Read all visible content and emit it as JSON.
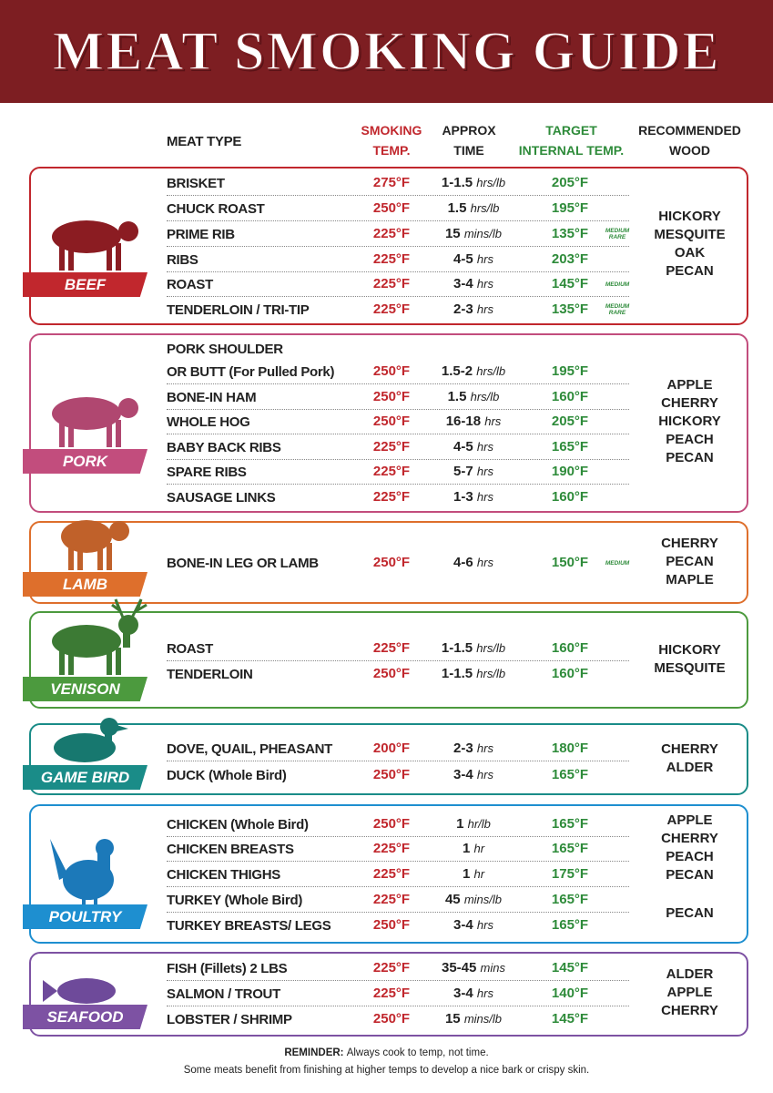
{
  "header": {
    "title": "MEAT SMOKING GUIDE"
  },
  "columns": {
    "meat": "MEAT TYPE",
    "temp": "SMOKING\nTEMP.",
    "time": "APPROX\nTIME",
    "target": "TARGET\nINTERNAL TEMP.",
    "wood": "RECOMMENDED\nWOOD"
  },
  "sections": [
    {
      "name": "BEEF",
      "color": "#c1272d",
      "rows": [
        {
          "meat": "BRISKET",
          "temp": "275°F",
          "time_amount": "1-1.5",
          "time_unit": "hrs/lb",
          "target": "205°F"
        },
        {
          "meat": "CHUCK ROAST",
          "temp": "250°F",
          "time_amount": "1.5",
          "time_unit": "hrs/lb",
          "target": "195°F"
        },
        {
          "meat": "PRIME RIB",
          "temp": "225°F",
          "time_amount": "15",
          "time_unit": "mins/lb",
          "target": "135°F",
          "note": "MEDIUM\nRARE"
        },
        {
          "meat": "RIBS",
          "temp": "225°F",
          "time_amount": "4-5",
          "time_unit": "hrs",
          "target": "203°F"
        },
        {
          "meat": "ROAST",
          "temp": "225°F",
          "time_amount": "3-4",
          "time_unit": "hrs",
          "target": "145°F",
          "note": "MEDIUM"
        },
        {
          "meat": "TENDERLOIN / TRI-TIP",
          "temp": "225°F",
          "time_amount": "2-3",
          "time_unit": "hrs",
          "target": "135°F",
          "note": "MEDIUM\nRARE"
        }
      ],
      "woods": [
        "HICKORY",
        "MESQUITE",
        "OAK",
        "PECAN"
      ]
    },
    {
      "name": "PORK",
      "color": "#c24d7d",
      "rows": [
        {
          "meat": "PORK SHOULDER\nOR BUTT (For Pulled Pork)",
          "temp": "250°F",
          "time_amount": "1.5-2",
          "time_unit": "hrs/lb",
          "target": "195°F"
        },
        {
          "meat": "BONE-IN HAM",
          "temp": "250°F",
          "time_amount": "1.5",
          "time_unit": "hrs/lb",
          "target": "160°F"
        },
        {
          "meat": "WHOLE HOG",
          "temp": "250°F",
          "time_amount": "16-18",
          "time_unit": "hrs",
          "target": "205°F"
        },
        {
          "meat": "BABY BACK RIBS",
          "temp": "225°F",
          "time_amount": "4-5",
          "time_unit": "hrs",
          "target": "165°F"
        },
        {
          "meat": "SPARE RIBS",
          "temp": "225°F",
          "time_amount": "5-7",
          "time_unit": "hrs",
          "target": "190°F"
        },
        {
          "meat": "SAUSAGE LINKS",
          "temp": "225°F",
          "time_amount": "1-3",
          "time_unit": "hrs",
          "target": "160°F"
        }
      ],
      "woods": [
        "APPLE",
        "CHERRY",
        "HICKORY",
        "PEACH",
        "PECAN"
      ]
    },
    {
      "name": "LAMB",
      "color": "#de6f2c",
      "rows": [
        {
          "meat": "BONE-IN LEG OR LAMB",
          "temp": "250°F",
          "time_amount": "4-6",
          "time_unit": "hrs",
          "target": "150°F",
          "note": "MEDIUM"
        }
      ],
      "woods": [
        "CHERRY",
        "PECAN",
        "MAPLE"
      ]
    },
    {
      "name": "VENISON",
      "color": "#4c9a3e",
      "rows": [
        {
          "meat": "ROAST",
          "temp": "225°F",
          "time_amount": "1-1.5",
          "time_unit": "hrs/lb",
          "target": "160°F"
        },
        {
          "meat": "TENDERLOIN",
          "temp": "250°F",
          "time_amount": "1-1.5",
          "time_unit": "hrs/lb",
          "target": "160°F"
        }
      ],
      "woods": [
        "HICKORY",
        "MESQUITE"
      ]
    },
    {
      "name": "GAME BIRD",
      "color": "#1a8c88",
      "rows": [
        {
          "meat": "DOVE, QUAIL, PHEASANT",
          "temp": "200°F",
          "time_amount": "2-3",
          "time_unit": "hrs",
          "target": "180°F"
        },
        {
          "meat": "DUCK (Whole Bird)",
          "temp": "250°F",
          "time_amount": "3-4",
          "time_unit": "hrs",
          "target": "165°F"
        }
      ],
      "woods": [
        "CHERRY",
        "ALDER"
      ]
    },
    {
      "name": "POULTRY",
      "color": "#1e8fd0",
      "rows": [
        {
          "meat": "CHICKEN (Whole Bird)",
          "temp": "250°F",
          "time_amount": "1",
          "time_unit": "hr/lb",
          "target": "165°F"
        },
        {
          "meat": "CHICKEN BREASTS",
          "temp": "225°F",
          "time_amount": "1",
          "time_unit": "hr",
          "target": "165°F"
        },
        {
          "meat": "CHICKEN THIGHS",
          "temp": "225°F",
          "time_amount": "1",
          "time_unit": "hr",
          "target": "175°F"
        },
        {
          "meat": "TURKEY (Whole Bird)",
          "temp": "225°F",
          "time_amount": "45",
          "time_unit": "mins/lb",
          "target": "165°F"
        },
        {
          "meat": "TURKEY BREASTS/ LEGS",
          "temp": "250°F",
          "time_amount": "3-4",
          "time_unit": "hrs",
          "target": "165°F"
        }
      ],
      "woods": [
        "APPLE",
        "CHERRY",
        "PEACH",
        "PECAN"
      ],
      "woods_2": [
        "PECAN"
      ]
    },
    {
      "name": "SEAFOOD",
      "color": "#7d52a3",
      "rows": [
        {
          "meat": "FISH (Fillets) 2 LBS",
          "temp": "225°F",
          "time_amount": "35-45",
          "time_unit": "mins",
          "target": "145°F"
        },
        {
          "meat": "SALMON / TROUT",
          "temp": "225°F",
          "time_amount": "3-4",
          "time_unit": "hrs",
          "target": "140°F"
        },
        {
          "meat": "LOBSTER / SHRIMP",
          "temp": "250°F",
          "time_amount": "15",
          "time_unit": "mins/lb",
          "target": "145°F"
        }
      ],
      "woods": [
        "ALDER",
        "APPLE",
        "CHERRY"
      ]
    }
  ],
  "footer": {
    "reminder_label": "REMINDER:",
    "reminder_text": "Always cook to temp, not time.",
    "note": "Some meats benefit from finishing at higher temps to develop a nice bark or crispy skin."
  }
}
